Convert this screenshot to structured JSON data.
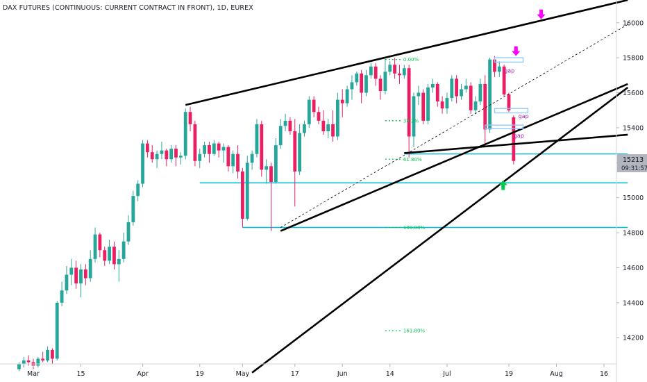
{
  "title": "DAX FUTURES (CONTINUOUS: CURRENT CONTRACT IN FRONT), 1D, EUREX",
  "colors": {
    "up": "#26a69a",
    "down": "#e91e63",
    "trendline": "#000000",
    "horizontal": "#00bcd4",
    "fib": "#00c853",
    "gap_box": "#90caf9",
    "arrow_down": "#ff00ff",
    "arrow_up": "#00c853",
    "gap_text": "#9c27b0",
    "price_tag_bg": "#b2b5be"
  },
  "chart_data": {
    "type": "candlestick",
    "ylim": [
      14050,
      16130
    ],
    "y_ticks": [
      14200,
      14400,
      14600,
      14800,
      15000,
      15200,
      15400,
      15600,
      15800,
      16000
    ],
    "x_ticks": [
      {
        "label": "Mar",
        "day": 0
      },
      {
        "label": "15",
        "day": 10
      },
      {
        "label": "Apr",
        "day": 23
      },
      {
        "label": "19",
        "day": 35
      },
      {
        "label": "May",
        "day": 44
      },
      {
        "label": "17",
        "day": 55
      },
      {
        "label": "Jun",
        "day": 65
      },
      {
        "label": "14",
        "day": 75
      },
      {
        "label": "Jul",
        "day": 87
      },
      {
        "label": "19",
        "day": 100
      },
      {
        "label": "Aug",
        "day": 110
      },
      {
        "label": "16",
        "day": 120
      }
    ],
    "current_price": {
      "value": "15213",
      "countdown": "09:31:57"
    },
    "candles": [
      [
        -3,
        14020,
        14060,
        14010,
        14050
      ],
      [
        -2,
        14050,
        14090,
        14030,
        14070
      ],
      [
        -1,
        14070,
        14100,
        14040,
        14060
      ],
      [
        0,
        14060,
        14080,
        14020,
        14040
      ],
      [
        1,
        14040,
        14090,
        14030,
        14080
      ],
      [
        2,
        14080,
        14120,
        14060,
        14070
      ],
      [
        3,
        14070,
        14150,
        14060,
        14130
      ],
      [
        4,
        14130,
        14140,
        14050,
        14080
      ],
      [
        5,
        14080,
        14410,
        14070,
        14400
      ],
      [
        6,
        14400,
        14520,
        14380,
        14470
      ],
      [
        7,
        14470,
        14610,
        14450,
        14560
      ],
      [
        8,
        14560,
        14650,
        14500,
        14600
      ],
      [
        9,
        14600,
        14640,
        14480,
        14510
      ],
      [
        10,
        14510,
        14620,
        14430,
        14590
      ],
      [
        11,
        14590,
        14620,
        14500,
        14540
      ],
      [
        12,
        14540,
        14700,
        14520,
        14650
      ],
      [
        13,
        14650,
        14830,
        14630,
        14790
      ],
      [
        14,
        14790,
        14800,
        14660,
        14700
      ],
      [
        15,
        14700,
        14720,
        14610,
        14640
      ],
      [
        16,
        14640,
        14760,
        14620,
        14720
      ],
      [
        17,
        14720,
        14750,
        14590,
        14620
      ],
      [
        18,
        14620,
        14700,
        14520,
        14650
      ],
      [
        19,
        14650,
        14800,
        14630,
        14750
      ],
      [
        20,
        14750,
        14900,
        14730,
        14860
      ],
      [
        21,
        14860,
        15040,
        14840,
        15010
      ],
      [
        22,
        15010,
        15100,
        14980,
        15080
      ],
      [
        23,
        15080,
        15330,
        15060,
        15310
      ],
      [
        24,
        15310,
        15330,
        15230,
        15260
      ],
      [
        25,
        15260,
        15300,
        15200,
        15220
      ],
      [
        26,
        15220,
        15270,
        15170,
        15250
      ],
      [
        27,
        15250,
        15320,
        15220,
        15270
      ],
      [
        28,
        15270,
        15280,
        15180,
        15220
      ],
      [
        29,
        15220,
        15300,
        15200,
        15280
      ],
      [
        30,
        15280,
        15300,
        15180,
        15230
      ],
      [
        31,
        15230,
        15260,
        15190,
        15240
      ],
      [
        32,
        15240,
        15510,
        15220,
        15490
      ],
      [
        33,
        15490,
        15520,
        15380,
        15420
      ],
      [
        34,
        15420,
        15440,
        15180,
        15210
      ],
      [
        35,
        15210,
        15280,
        15170,
        15250
      ],
      [
        36,
        15250,
        15320,
        15230,
        15300
      ],
      [
        37,
        15300,
        15320,
        15200,
        15250
      ],
      [
        38,
        15250,
        15330,
        15240,
        15310
      ],
      [
        39,
        15310,
        15320,
        15230,
        15270
      ],
      [
        40,
        15270,
        15310,
        15200,
        15290
      ],
      [
        41,
        15290,
        15300,
        15150,
        15180
      ],
      [
        42,
        15180,
        15270,
        15140,
        15250
      ],
      [
        43,
        15250,
        15300,
        15110,
        15150
      ],
      [
        44,
        15150,
        15170,
        14830,
        14880
      ],
      [
        45,
        14880,
        15240,
        14870,
        15200
      ],
      [
        46,
        15200,
        15270,
        15160,
        15250
      ],
      [
        47,
        15250,
        15450,
        15230,
        15420
      ],
      [
        48,
        15420,
        15440,
        15120,
        15160
      ],
      [
        49,
        15160,
        15220,
        15080,
        15180
      ],
      [
        50,
        15180,
        15200,
        14810,
        15090
      ],
      [
        51,
        15090,
        15340,
        15080,
        15300
      ],
      [
        52,
        15300,
        15450,
        15280,
        15410
      ],
      [
        53,
        15410,
        15480,
        15380,
        15440
      ],
      [
        54,
        15440,
        15460,
        15360,
        15380
      ],
      [
        55,
        15380,
        15450,
        14950,
        15150
      ],
      [
        56,
        15150,
        15420,
        15130,
        15370
      ],
      [
        57,
        15370,
        15440,
        15350,
        15420
      ],
      [
        58,
        15420,
        15580,
        15400,
        15560
      ],
      [
        59,
        15560,
        15580,
        15460,
        15490
      ],
      [
        60,
        15490,
        15520,
        15420,
        15440
      ],
      [
        61,
        15440,
        15500,
        15360,
        15380
      ],
      [
        62,
        15380,
        15450,
        15340,
        15420
      ],
      [
        63,
        15420,
        15500,
        15320,
        15350
      ],
      [
        64,
        15350,
        15600,
        15330,
        15560
      ],
      [
        65,
        15560,
        15620,
        15460,
        15540
      ],
      [
        66,
        15540,
        15640,
        15520,
        15620
      ],
      [
        67,
        15620,
        15700,
        15560,
        15660
      ],
      [
        68,
        15660,
        15720,
        15640,
        15710
      ],
      [
        69,
        15710,
        15730,
        15540,
        15600
      ],
      [
        70,
        15600,
        15730,
        15580,
        15700
      ],
      [
        71,
        15700,
        15770,
        15680,
        15750
      ],
      [
        72,
        15750,
        15770,
        15640,
        15680
      ],
      [
        73,
        15680,
        15700,
        15560,
        15610
      ],
      [
        74,
        15610,
        15800,
        15590,
        15720
      ],
      [
        75,
        15720,
        15780,
        15700,
        15760
      ],
      [
        76,
        15760,
        15800,
        15680,
        15710
      ],
      [
        77,
        15710,
        15760,
        15650,
        15700
      ],
      [
        78,
        15700,
        15760,
        15680,
        15740
      ],
      [
        79,
        15740,
        15760,
        15230,
        15350
      ],
      [
        80,
        15350,
        15600,
        15290,
        15580
      ],
      [
        81,
        15580,
        15640,
        15530,
        15600
      ],
      [
        82,
        15600,
        15620,
        15420,
        15440
      ],
      [
        83,
        15440,
        15650,
        15420,
        15630
      ],
      [
        84,
        15630,
        15680,
        15600,
        15650
      ],
      [
        85,
        15650,
        15660,
        15520,
        15550
      ],
      [
        86,
        15550,
        15580,
        15480,
        15510
      ],
      [
        87,
        15510,
        15600,
        15480,
        15570
      ],
      [
        88,
        15570,
        15700,
        15550,
        15680
      ],
      [
        89,
        15680,
        15700,
        15540,
        15580
      ],
      [
        90,
        15580,
        15650,
        15560,
        15620
      ],
      [
        91,
        15620,
        15680,
        15600,
        15640
      ],
      [
        92,
        15640,
        15660,
        15480,
        15500
      ],
      [
        93,
        15500,
        15580,
        15480,
        15550
      ],
      [
        94,
        15550,
        15680,
        15530,
        15650
      ],
      [
        95,
        15650,
        15700,
        15310,
        15390
      ],
      [
        96,
        15390,
        15800,
        15370,
        15790
      ],
      [
        97,
        15790,
        15810,
        15690,
        15720
      ],
      [
        98,
        15720,
        15780,
        15690,
        15750
      ],
      [
        99,
        15750,
        15760,
        15580,
        15590
      ],
      [
        100,
        15590,
        15600,
        15490,
        15500
      ],
      [
        101,
        15460,
        15470,
        15190,
        15210
      ]
    ],
    "annotations": {
      "fib_levels": [
        {
          "label": "0.00%",
          "value": 15790
        },
        {
          "label": "38.2%",
          "value": 15440
        },
        {
          "label": "61.80%",
          "value": 15220
        },
        {
          "label": "100.00%",
          "value": 14830
        },
        {
          "label": "161.80%",
          "value": 14240
        }
      ],
      "gap_labels": [
        "gap",
        "gap",
        "gap"
      ]
    }
  }
}
